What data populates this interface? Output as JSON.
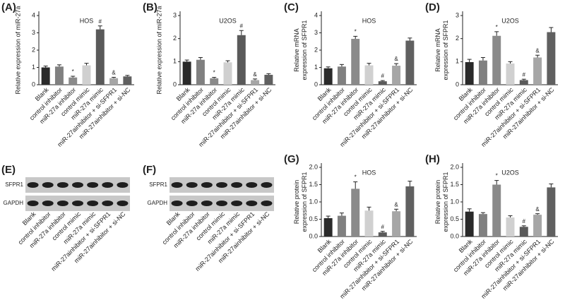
{
  "chart_data": [
    {
      "type": "bar",
      "letter": "(A)",
      "title": "HOS",
      "ylabel": [
        "Relative expression of miR-27a"
      ],
      "categories": [
        "Blank",
        "control inhibitor",
        "miR-27a inhibitor",
        "control mimic",
        "miR-27a mimic",
        "miR-27ainhibitor + si-SFPR1",
        "miR-27ainhibitor + si-NC"
      ],
      "values": [
        1.0,
        1.05,
        0.42,
        1.12,
        3.2,
        0.38,
        0.48
      ],
      "errors": [
        0.08,
        0.1,
        0.07,
        0.12,
        0.2,
        0.05,
        0.06
      ],
      "markers": [
        null,
        null,
        "*",
        null,
        "#",
        "&",
        null
      ],
      "colors": [
        "#2a2a2a",
        "#808080",
        "#8a8a8a",
        "#d0d0d0",
        "#5a5a5a",
        "#a6a6a6",
        "#606060"
      ],
      "ylim": [
        0,
        4
      ],
      "yticks": [
        0,
        1,
        2,
        3,
        4
      ]
    },
    {
      "type": "bar",
      "letter": "(B)",
      "title": "U2OS",
      "ylabel": [
        "Relative expression of miR-27a"
      ],
      "categories": [
        "Blank",
        "control inhibitor",
        "miR-27a inhibitor",
        "control mimic",
        "miR-27a mimic",
        "miR-27ainhibitor + si-SFPR1",
        "miR-27ainhibitor + si-NC"
      ],
      "values": [
        1.0,
        1.08,
        0.28,
        0.97,
        2.15,
        0.2,
        0.43
      ],
      "errors": [
        0.07,
        0.1,
        0.04,
        0.07,
        0.2,
        0.05,
        0.05
      ],
      "markers": [
        null,
        null,
        "*",
        null,
        "#",
        "&",
        null
      ],
      "colors": [
        "#2a2a2a",
        "#808080",
        "#8a8a8a",
        "#d0d0d0",
        "#5a5a5a",
        "#a6a6a6",
        "#606060"
      ],
      "ylim": [
        0,
        3
      ],
      "yticks": [
        0,
        1,
        2,
        3
      ]
    },
    {
      "type": "bar",
      "letter": "(C)",
      "title": "HOS",
      "ylabel": [
        "Relative mRNA",
        "expression of SFPR1"
      ],
      "categories": [
        "Blank",
        "control inhibitor",
        "miR-27a inhibitor",
        "control mimic",
        "miR-27a mimic",
        "miR-27ainhibitor + si-SFPR1",
        "miR-27ainhibitor + si-NC"
      ],
      "values": [
        0.95,
        1.05,
        2.65,
        1.12,
        0.2,
        1.1,
        2.55
      ],
      "errors": [
        0.08,
        0.12,
        0.15,
        0.12,
        0.04,
        0.12,
        0.15
      ],
      "markers": [
        null,
        null,
        "*",
        null,
        "#",
        "&",
        null
      ],
      "colors": [
        "#2a2a2a",
        "#808080",
        "#8a8a8a",
        "#d0d0d0",
        "#5a5a5a",
        "#a6a6a6",
        "#606060"
      ],
      "ylim": [
        0,
        4
      ],
      "yticks": [
        0,
        1,
        2,
        3,
        4
      ]
    },
    {
      "type": "bar",
      "letter": "(D)",
      "title": "U2OS",
      "ylabel": [
        "Relative mRNA",
        "expression of SFPR1"
      ],
      "categories": [
        "Blank",
        "control inhibitor",
        "miR-27a inhibitor",
        "control mimic",
        "miR-27a mimic",
        "miR-27ainhibitor + si-SFPR1",
        "miR-27ainhibitor + si-NC"
      ],
      "values": [
        0.98,
        1.05,
        2.12,
        0.92,
        0.2,
        1.18,
        2.28
      ],
      "errors": [
        0.12,
        0.13,
        0.18,
        0.08,
        0.04,
        0.1,
        0.2
      ],
      "markers": [
        null,
        null,
        "*",
        null,
        "#",
        "&",
        null
      ],
      "colors": [
        "#2a2a2a",
        "#808080",
        "#8a8a8a",
        "#d0d0d0",
        "#5a5a5a",
        "#a6a6a6",
        "#606060"
      ],
      "ylim": [
        0,
        3
      ],
      "yticks": [
        0,
        1,
        2,
        3
      ]
    },
    {
      "type": "bar",
      "letter": "(G)",
      "title": "HOS",
      "ylabel": [
        "Relative protein",
        "expression of SFPR1"
      ],
      "categories": [
        "Blank",
        "control inhibitor",
        "miR-27a inhibitor",
        "control mimic",
        "miR-27a mimic",
        "miR-27ainhibitor + si-SFPR1",
        "miR-27ainhibitor + si-NC"
      ],
      "values": [
        0.53,
        0.6,
        1.38,
        0.75,
        0.12,
        0.73,
        1.45
      ],
      "errors": [
        0.06,
        0.08,
        0.2,
        0.1,
        0.03,
        0.06,
        0.15
      ],
      "markers": [
        null,
        null,
        "*",
        null,
        "#",
        "&",
        null
      ],
      "colors": [
        "#2a2a2a",
        "#808080",
        "#8a8a8a",
        "#d0d0d0",
        "#5a5a5a",
        "#a6a6a6",
        "#606060"
      ],
      "ylim": [
        0,
        2
      ],
      "yticks": [
        {
          "value": 0,
          "label": "0.0"
        },
        0.5,
        {
          "value": 1,
          "label": "1.0"
        },
        1.5,
        {
          "value": 2,
          "label": "2.0"
        }
      ]
    },
    {
      "type": "bar",
      "letter": "(H)",
      "title": "U2OS",
      "ylabel": [
        "Relative protein",
        "expression of SFPR1"
      ],
      "categories": [
        "Blank",
        "control inhibitor",
        "miR-27a inhibitor",
        "control mimic",
        "miR-27a mimic",
        "miR-27ainhibitor + si-SFPR1",
        "miR-27ainhibitor + si-NC"
      ],
      "values": [
        0.72,
        0.65,
        1.5,
        0.55,
        0.28,
        0.63,
        1.42
      ],
      "errors": [
        0.08,
        0.04,
        0.12,
        0.05,
        0.03,
        0.03,
        0.1
      ],
      "markers": [
        null,
        null,
        "*",
        null,
        "#",
        "&",
        null
      ],
      "colors": [
        "#2a2a2a",
        "#808080",
        "#8a8a8a",
        "#d0d0d0",
        "#5a5a5a",
        "#a6a6a6",
        "#606060"
      ],
      "ylim": [
        0,
        2
      ],
      "yticks": [
        {
          "value": 0,
          "label": "0.0"
        },
        0.5,
        {
          "value": 1,
          "label": "1.0"
        },
        1.5,
        {
          "value": 2,
          "label": "2.0"
        }
      ]
    }
  ],
  "blots": [
    {
      "letter": "(E)",
      "rows": [
        "SFPR1",
        "GAPDH"
      ],
      "categories": [
        "Blank",
        "control inhibitor",
        "miR-27a inhibitor",
        "control mimic",
        "miR-27a mimic",
        "miR-27ainhibitor + si-SFPR1",
        "miR-27ainhibitor + si-NC"
      ]
    },
    {
      "letter": "(F)",
      "rows": [
        "SFPR1",
        "GAPDH"
      ],
      "categories": [
        "Blank",
        "control inhibitor",
        "miR-27a inhibitor",
        "control mimic",
        "miR-27a mimic",
        "miR-27ainhibitor + si-SFPR1",
        "miR-27ainhibitor + si-NC"
      ]
    }
  ]
}
